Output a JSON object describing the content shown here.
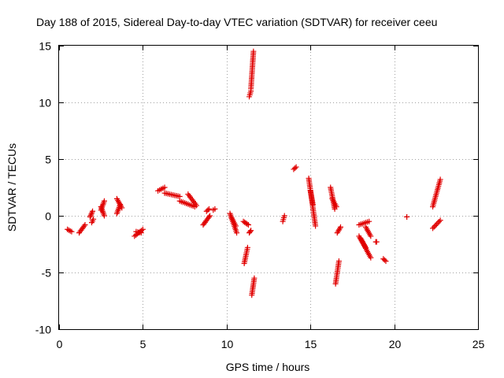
{
  "chart_data": {
    "type": "scatter",
    "title": "Day 188 of 2015, Sidereal Day-to-day VTEC variation (SDTVAR) for receiver ceeu",
    "xlabel": "GPS time / hours",
    "ylabel": "SDTVAR / TECUs",
    "xlim": [
      0,
      25
    ],
    "ylim": [
      -10,
      15
    ],
    "xticks": [
      0,
      5,
      10,
      15,
      20,
      25
    ],
    "yticks": [
      -10,
      -5,
      0,
      5,
      10,
      15
    ],
    "grid": true,
    "marker": "plus",
    "color": "#e00000",
    "segments": [
      {
        "x": [
          0.5,
          0.75
        ],
        "y": [
          -1.2,
          -1.4
        ]
      },
      {
        "x": [
          1.2,
          1.55
        ],
        "y": [
          -1.5,
          -0.8
        ]
      },
      {
        "x": [
          1.85,
          2.0
        ],
        "y": [
          -0.1,
          0.4
        ]
      },
      {
        "x": [
          1.95,
          2.05
        ],
        "y": [
          -0.6,
          -0.3
        ]
      },
      {
        "x": [
          2.5,
          2.7
        ],
        "y": [
          0.5,
          1.3
        ]
      },
      {
        "x": [
          2.5,
          2.7
        ],
        "y": [
          0.8,
          0.0
        ]
      },
      {
        "x": [
          3.45,
          3.75
        ],
        "y": [
          1.5,
          0.7
        ]
      },
      {
        "x": [
          3.45,
          3.65
        ],
        "y": [
          0.2,
          1.0
        ]
      },
      {
        "x": [
          4.5,
          5.0
        ],
        "y": [
          -1.8,
          -1.2
        ]
      },
      {
        "x": [
          4.6,
          4.9
        ],
        "y": [
          -1.4,
          -1.5
        ]
      },
      {
        "x": [
          5.9,
          6.3
        ],
        "y": [
          2.2,
          2.5
        ]
      },
      {
        "x": [
          6.3,
          7.2
        ],
        "y": [
          2.0,
          1.7
        ]
      },
      {
        "x": [
          7.2,
          8.1
        ],
        "y": [
          1.3,
          0.8
        ]
      },
      {
        "x": [
          7.7,
          8.2
        ],
        "y": [
          1.9,
          0.9
        ]
      },
      {
        "x": [
          8.6,
          9.0
        ],
        "y": [
          -0.8,
          0.0
        ]
      },
      {
        "x": [
          8.8,
          8.95
        ],
        "y": [
          0.4,
          0.6
        ]
      },
      {
        "x": [
          9.2,
          9.3
        ],
        "y": [
          0.5,
          0.6
        ]
      },
      {
        "x": [
          10.2,
          10.6
        ],
        "y": [
          0.2,
          -1.5
        ]
      },
      {
        "x": [
          10.3,
          10.55
        ],
        "y": [
          -0.2,
          -0.9
        ]
      },
      {
        "x": [
          11.0,
          11.3
        ],
        "y": [
          -0.5,
          -0.8
        ]
      },
      {
        "x": [
          11.05,
          11.25
        ],
        "y": [
          -4.2,
          -2.8
        ]
      },
      {
        "x": [
          11.35,
          11.45
        ],
        "y": [
          -1.5,
          -1.3
        ]
      },
      {
        "x": [
          11.35,
          11.45
        ],
        "y": [
          10.5,
          11.0
        ]
      },
      {
        "x": [
          11.45,
          11.6
        ],
        "y": [
          11.2,
          14.5
        ]
      },
      {
        "x": [
          11.5,
          11.65
        ],
        "y": [
          -7.0,
          -5.5
        ]
      },
      {
        "x": [
          13.35,
          13.45
        ],
        "y": [
          -0.5,
          0.0
        ]
      },
      {
        "x": [
          14.0,
          14.15
        ],
        "y": [
          4.1,
          4.3
        ]
      },
      {
        "x": [
          14.9,
          15.3
        ],
        "y": [
          3.3,
          -0.9
        ]
      },
      {
        "x": [
          15.0,
          15.15
        ],
        "y": [
          2.2,
          1.0
        ]
      },
      {
        "x": [
          16.2,
          16.45
        ],
        "y": [
          2.5,
          0.6
        ]
      },
      {
        "x": [
          16.3,
          16.55
        ],
        "y": [
          1.5,
          0.8
        ]
      },
      {
        "x": [
          16.5,
          16.7
        ],
        "y": [
          -6.0,
          -4.0
        ]
      },
      {
        "x": [
          16.6,
          16.8
        ],
        "y": [
          -1.5,
          -1.0
        ]
      },
      {
        "x": [
          17.9,
          18.5
        ],
        "y": [
          -0.8,
          -0.5
        ]
      },
      {
        "x": [
          17.9,
          18.6
        ],
        "y": [
          -1.8,
          -3.7
        ]
      },
      {
        "x": [
          18.0,
          18.3
        ],
        "y": [
          -2.0,
          -2.8
        ]
      },
      {
        "x": [
          18.3,
          18.6
        ],
        "y": [
          -1.0,
          -1.8
        ]
      },
      {
        "x": [
          18.9,
          18.95
        ],
        "y": [
          -2.3,
          -2.3
        ]
      },
      {
        "x": [
          19.35,
          19.5
        ],
        "y": [
          -3.8,
          -4.0
        ]
      },
      {
        "x": [
          20.75,
          20.75
        ],
        "y": [
          -0.1,
          -0.1
        ]
      },
      {
        "x": [
          22.3,
          22.75
        ],
        "y": [
          0.8,
          3.2
        ]
      },
      {
        "x": [
          22.3,
          22.75
        ],
        "y": [
          -1.1,
          -0.4
        ]
      }
    ]
  }
}
